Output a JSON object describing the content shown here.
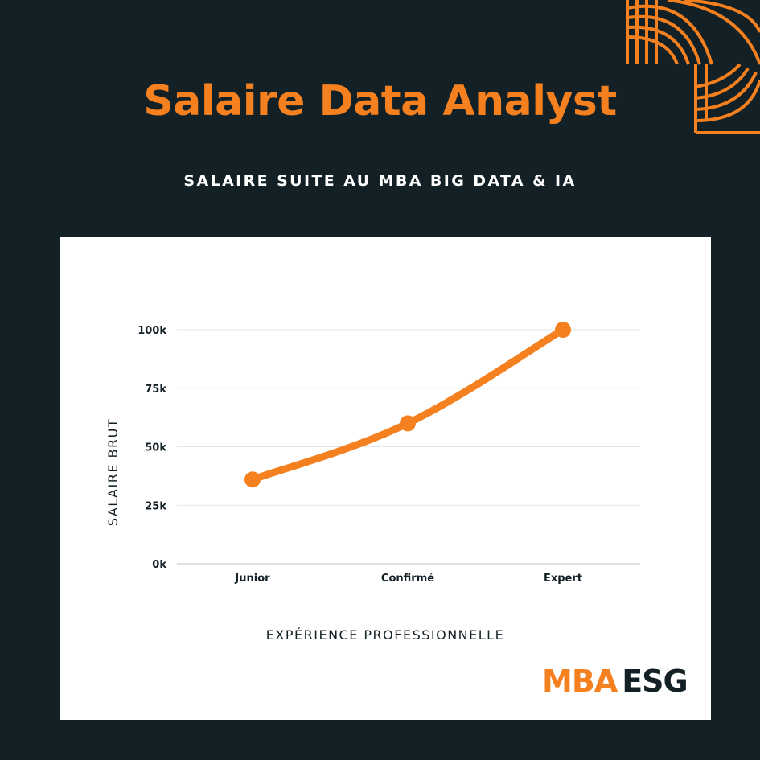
{
  "header": {
    "title": "Salaire Data Analyst",
    "subtitle": "SALAIRE SUITE AU MBA BIG DATA & IA"
  },
  "colors": {
    "background": "#132025",
    "accent": "#f5801f",
    "card": "#ffffff",
    "text_dark": "#132025"
  },
  "chart_data": {
    "type": "line",
    "categories": [
      "Junior",
      "Confirmé",
      "Expert"
    ],
    "values": [
      36000,
      60000,
      100000
    ],
    "xlabel": "EXPÉRIENCE PROFESSIONNELLE",
    "ylabel": "SALAIRE BRUT",
    "ylim": [
      0,
      100000
    ],
    "yticks": [
      0,
      25000,
      50000,
      75000,
      100000
    ],
    "ytick_labels": [
      "0k",
      "25k",
      "50k",
      "75k",
      "100k"
    ],
    "grid": true,
    "legend": "none"
  },
  "logo": {
    "part1": "MBA",
    "part2": "ESG"
  }
}
